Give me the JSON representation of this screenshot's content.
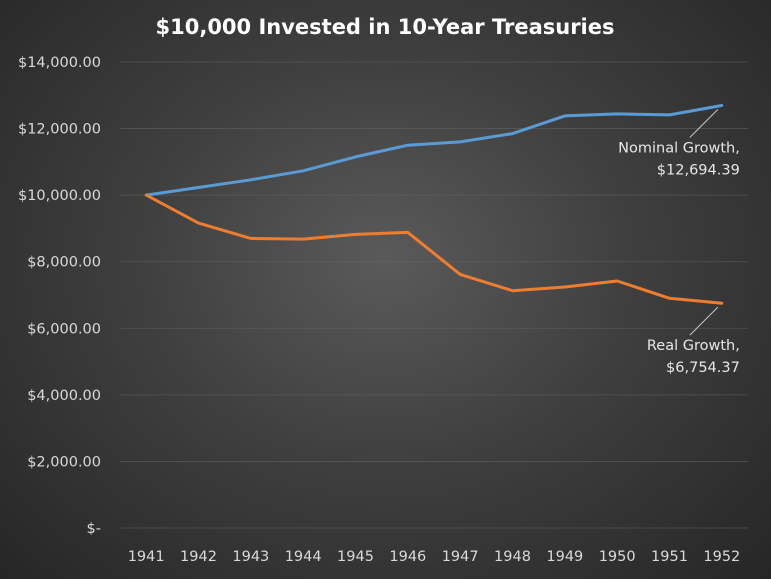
{
  "chart_data": {
    "type": "line",
    "title": "$10,000 Invested in 10-Year Treasuries",
    "xlabel": "",
    "ylabel": "",
    "categories": [
      "1941",
      "1942",
      "1943",
      "1944",
      "1945",
      "1946",
      "1947",
      "1948",
      "1949",
      "1950",
      "1951",
      "1952"
    ],
    "ylim": [
      0,
      14000
    ],
    "y_ticks": [
      0,
      2000,
      4000,
      6000,
      8000,
      10000,
      12000,
      14000
    ],
    "y_tick_labels": [
      "$-",
      "$2,000.00",
      "$4,000.00",
      "$6,000.00",
      "$8,000.00",
      "$10,000.00",
      "$12,000.00",
      "$14,000.00"
    ],
    "grid": true,
    "series": [
      {
        "name": "Nominal Growth",
        "color": "#5b9bd5",
        "values": [
          10000,
          10230,
          10460,
          10730,
          11150,
          11500,
          11600,
          11850,
          12380,
          12440,
          12410,
          12694.39
        ],
        "annotation_lines": [
          "Nominal Growth,",
          "$12,694.39"
        ]
      },
      {
        "name": "Real Growth",
        "color": "#ed7d31",
        "values": [
          10000,
          9160,
          8700,
          8680,
          8820,
          8880,
          7620,
          7130,
          7240,
          7420,
          6900,
          6754.37
        ],
        "annotation_lines": [
          "Real Growth,",
          "$6,754.37"
        ]
      }
    ]
  }
}
